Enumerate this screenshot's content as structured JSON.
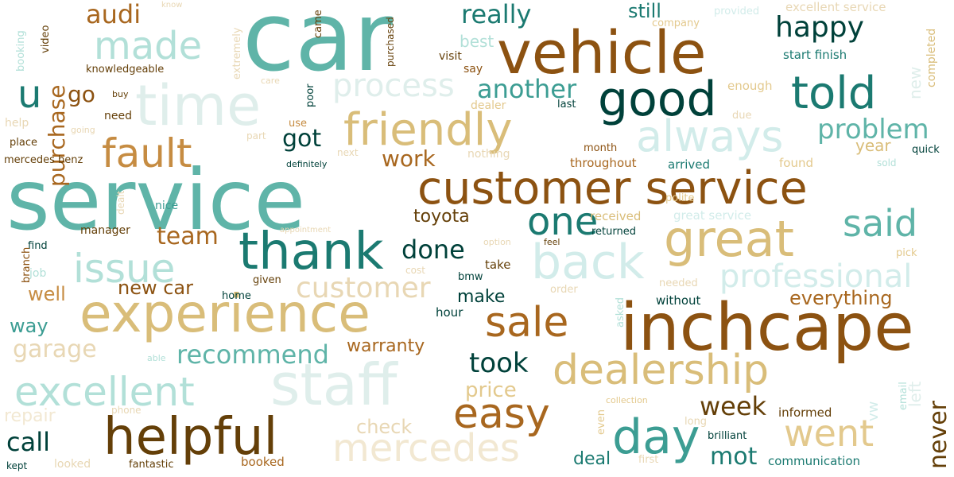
{
  "palette": {
    "c1": "#f2e8d2",
    "c2": "#c4e9e3",
    "c3": "#d9bd79",
    "c4": "#c68c42",
    "c5": "#5fb4a8",
    "c6": "#8c5211",
    "c7": "#1b7a71",
    "c8": "#00413a",
    "c9": "#b2e0d8",
    "c10": "#d2ecea",
    "c11": "#643f08",
    "c12": "#3c9d93",
    "c13": "#e3c98d",
    "c14": "#a8671f",
    "c15": "#dfeeeb",
    "c16": "#e8d7b4"
  },
  "words": [
    {
      "text": "car",
      "weight": 100,
      "color": "c5"
    },
    {
      "text": "service",
      "weight": 98,
      "color": "c5"
    },
    {
      "text": "inchcape",
      "weight": 78,
      "color": "c6"
    },
    {
      "text": "vehicle",
      "weight": 72,
      "color": "c6"
    },
    {
      "text": "experience",
      "weight": 70,
      "color": "c3"
    },
    {
      "text": "customer service",
      "weight": 66,
      "color": "c6"
    },
    {
      "text": "time",
      "weight": 64,
      "color": "c15"
    },
    {
      "text": "staff",
      "weight": 62,
      "color": "c15"
    },
    {
      "text": "good",
      "weight": 60,
      "color": "c8"
    },
    {
      "text": "thank",
      "weight": 58,
      "color": "c7"
    },
    {
      "text": "helpful",
      "weight": 56,
      "color": "c11"
    },
    {
      "text": "great",
      "weight": 55,
      "color": "c3"
    },
    {
      "text": "day",
      "weight": 54,
      "color": "c12"
    },
    {
      "text": "friendly",
      "weight": 52,
      "color": "c3"
    },
    {
      "text": "dealership",
      "weight": 51,
      "color": "c3"
    },
    {
      "text": "told",
      "weight": 50,
      "color": "c7"
    },
    {
      "text": "back",
      "weight": 49,
      "color": "c10"
    },
    {
      "text": "always",
      "weight": 48,
      "color": "c10"
    },
    {
      "text": "sale",
      "weight": 47,
      "color": "c14"
    },
    {
      "text": "easy",
      "weight": 47,
      "color": "c14"
    },
    {
      "text": "excellent",
      "weight": 46,
      "color": "c9"
    },
    {
      "text": "mercedes",
      "weight": 45,
      "color": "c1"
    },
    {
      "text": "fault",
      "weight": 44,
      "color": "c4"
    },
    {
      "text": "made",
      "weight": 44,
      "color": "c9"
    },
    {
      "text": "issue",
      "weight": 43,
      "color": "c9"
    },
    {
      "text": "one",
      "weight": 42,
      "color": "c7"
    },
    {
      "text": "went",
      "weight": 42,
      "color": "c13"
    },
    {
      "text": "said",
      "weight": 40,
      "color": "c5"
    },
    {
      "text": "u",
      "weight": 38,
      "color": "c7"
    },
    {
      "text": "professional",
      "weight": 37,
      "color": "c10"
    },
    {
      "text": "process",
      "weight": 36,
      "color": "c15"
    },
    {
      "text": "customer",
      "weight": 36,
      "color": "c16"
    },
    {
      "text": "purchase",
      "weight": 35,
      "color": "c14"
    },
    {
      "text": "happy",
      "weight": 34,
      "color": "c8"
    },
    {
      "text": "problem",
      "weight": 33,
      "color": "c5"
    },
    {
      "text": "took",
      "weight": 33,
      "color": "c8"
    },
    {
      "text": "week",
      "weight": 32,
      "color": "c11"
    },
    {
      "text": "recommend",
      "weight": 31,
      "color": "c5"
    },
    {
      "text": "never",
      "weight": 31,
      "color": "c11"
    },
    {
      "text": "really",
      "weight": 31,
      "color": "c7"
    },
    {
      "text": "another",
      "weight": 30,
      "color": "c12"
    },
    {
      "text": "audi",
      "weight": 30,
      "color": "c14"
    },
    {
      "text": "call",
      "weight": 30,
      "color": "c8"
    },
    {
      "text": "done",
      "weight": 30,
      "color": "c8"
    },
    {
      "text": "mot",
      "weight": 29,
      "color": "c7"
    },
    {
      "text": "team",
      "weight": 29,
      "color": "c14"
    },
    {
      "text": "got",
      "weight": 28,
      "color": "c8"
    },
    {
      "text": "garage",
      "weight": 28,
      "color": "c16"
    },
    {
      "text": "go",
      "weight": 28,
      "color": "c6"
    },
    {
      "text": "price",
      "weight": 26,
      "color": "c13"
    },
    {
      "text": "check",
      "weight": 26,
      "color": "c16"
    },
    {
      "text": "new car",
      "weight": 26,
      "color": "c6"
    },
    {
      "text": "well",
      "weight": 26,
      "color": "c4"
    },
    {
      "text": "way",
      "weight": 26,
      "color": "c12"
    },
    {
      "text": "warranty",
      "weight": 25,
      "color": "c14"
    },
    {
      "text": "deal",
      "weight": 25,
      "color": "c7"
    },
    {
      "text": "work",
      "weight": 25,
      "color": "c14"
    },
    {
      "text": "make",
      "weight": 24,
      "color": "c8"
    },
    {
      "text": "toyota",
      "weight": 24,
      "color": "c11"
    },
    {
      "text": "everything",
      "weight": 24,
      "color": "c14"
    },
    {
      "text": "still",
      "weight": 24,
      "color": "c7"
    },
    {
      "text": "repair",
      "weight": 23,
      "color": "c1"
    },
    {
      "text": "best",
      "weight": 22,
      "color": "c9"
    },
    {
      "text": "year",
      "weight": 21,
      "color": "c3"
    },
    {
      "text": "left",
      "weight": 21,
      "color": "c15"
    },
    {
      "text": "new",
      "weight": 21,
      "color": "c15"
    },
    {
      "text": "vw",
      "weight": 20,
      "color": "c10"
    },
    {
      "text": "excellent service",
      "weight": 16,
      "color": "c16"
    },
    {
      "text": "start finish",
      "weight": 16,
      "color": "c7"
    },
    {
      "text": "great service",
      "weight": 15,
      "color": "c10"
    },
    {
      "text": "received",
      "weight": 15,
      "color": "c3"
    },
    {
      "text": "throughout",
      "weight": 15,
      "color": "c14"
    },
    {
      "text": "arrived",
      "weight": 15,
      "color": "c7"
    },
    {
      "text": "informed",
      "weight": 15,
      "color": "c11"
    },
    {
      "text": "communication",
      "weight": 15,
      "color": "c7"
    },
    {
      "text": "booked",
      "weight": 15,
      "color": "c14"
    },
    {
      "text": "without",
      "weight": 15,
      "color": "c8"
    },
    {
      "text": "hour",
      "weight": 15,
      "color": "c8"
    },
    {
      "text": "enough",
      "weight": 15,
      "color": "c13"
    },
    {
      "text": "take",
      "weight": 15,
      "color": "c11"
    },
    {
      "text": "completed",
      "weight": 14,
      "color": "c3"
    },
    {
      "text": "fantastic",
      "weight": 13,
      "color": "c11"
    },
    {
      "text": "brilliant",
      "weight": 13,
      "color": "c8"
    },
    {
      "text": "quick",
      "weight": 13,
      "color": "c8"
    },
    {
      "text": "found",
      "weight": 15,
      "color": "c13"
    },
    {
      "text": "pick",
      "weight": 13,
      "color": "c13"
    },
    {
      "text": "returned",
      "weight": 13,
      "color": "c8"
    },
    {
      "text": "month",
      "weight": 13,
      "color": "c6"
    },
    {
      "text": "polite",
      "weight": 13,
      "color": "c13"
    },
    {
      "text": "dealer",
      "weight": 14,
      "color": "c13"
    },
    {
      "text": "nothing",
      "weight": 14,
      "color": "c16"
    },
    {
      "text": "say",
      "weight": 14,
      "color": "c6"
    },
    {
      "text": "visit",
      "weight": 14,
      "color": "c11"
    },
    {
      "text": "purchased",
      "weight": 12,
      "color": "c11"
    },
    {
      "text": "provided",
      "weight": 13,
      "color": "c10"
    },
    {
      "text": "company",
      "weight": 13,
      "color": "c13"
    },
    {
      "text": "came",
      "weight": 13,
      "color": "c11"
    },
    {
      "text": "poor",
      "weight": 13,
      "color": "c8"
    },
    {
      "text": "use",
      "weight": 13,
      "color": "c4"
    },
    {
      "text": "extremely",
      "weight": 13,
      "color": "c16"
    },
    {
      "text": "knowledgeable",
      "weight": 13,
      "color": "c11"
    },
    {
      "text": "need",
      "weight": 14,
      "color": "c11"
    },
    {
      "text": "place",
      "weight": 13,
      "color": "c11"
    },
    {
      "text": "mercedes benz",
      "weight": 13,
      "color": "c11"
    },
    {
      "text": "help",
      "weight": 14,
      "color": "c16"
    },
    {
      "text": "video",
      "weight": 13,
      "color": "c11"
    },
    {
      "text": "booking",
      "weight": 13,
      "color": "c9"
    },
    {
      "text": "manager",
      "weight": 14,
      "color": "c11"
    },
    {
      "text": "nice",
      "weight": 14,
      "color": "c12"
    },
    {
      "text": "find",
      "weight": 13,
      "color": "c8"
    },
    {
      "text": "job",
      "weight": 14,
      "color": "c9"
    },
    {
      "text": "branch",
      "weight": 13,
      "color": "c6"
    },
    {
      "text": "given",
      "weight": 13,
      "color": "c11"
    },
    {
      "text": "home",
      "weight": 13,
      "color": "c8"
    },
    {
      "text": "bmw",
      "weight": 13,
      "color": "c8"
    },
    {
      "text": "order",
      "weight": 13,
      "color": "c16"
    },
    {
      "text": "asked",
      "weight": 13,
      "color": "c9"
    },
    {
      "text": "needed",
      "weight": 13,
      "color": "c16"
    },
    {
      "text": "email",
      "weight": 13,
      "color": "c9"
    },
    {
      "text": "even",
      "weight": 13,
      "color": "c13"
    },
    {
      "text": "long",
      "weight": 13,
      "color": "c16"
    },
    {
      "text": "first",
      "weight": 13,
      "color": "c16"
    },
    {
      "text": "phone",
      "weight": 12,
      "color": "c16"
    },
    {
      "text": "looked",
      "weight": 14,
      "color": "c16"
    },
    {
      "text": "kept",
      "weight": 12,
      "color": "c8"
    },
    {
      "text": "able",
      "weight": 11,
      "color": "c9"
    },
    {
      "text": "collection",
      "weight": 11,
      "color": "c13"
    },
    {
      "text": "due",
      "weight": 13,
      "color": "c16"
    },
    {
      "text": "last",
      "weight": 13,
      "color": "c8"
    },
    {
      "text": "sold",
      "weight": 12,
      "color": "c9"
    },
    {
      "text": "definitely",
      "weight": 11,
      "color": "c8"
    },
    {
      "text": "next",
      "weight": 12,
      "color": "c16"
    },
    {
      "text": "part",
      "weight": 12,
      "color": "c16"
    },
    {
      "text": "going",
      "weight": 11,
      "color": "c16"
    },
    {
      "text": "buy",
      "weight": 11,
      "color": "c11"
    },
    {
      "text": "care",
      "weight": 11,
      "color": "c16"
    },
    {
      "text": "know",
      "weight": 10,
      "color": "c16"
    },
    {
      "text": "cost",
      "weight": 12,
      "color": "c16"
    },
    {
      "text": "option",
      "weight": 11,
      "color": "c16"
    },
    {
      "text": "feel",
      "weight": 11,
      "color": "c11"
    },
    {
      "text": "appointment",
      "weight": 10,
      "color": "c16"
    },
    {
      "text": "dealt",
      "weight": 12,
      "color": "c16"
    }
  ]
}
